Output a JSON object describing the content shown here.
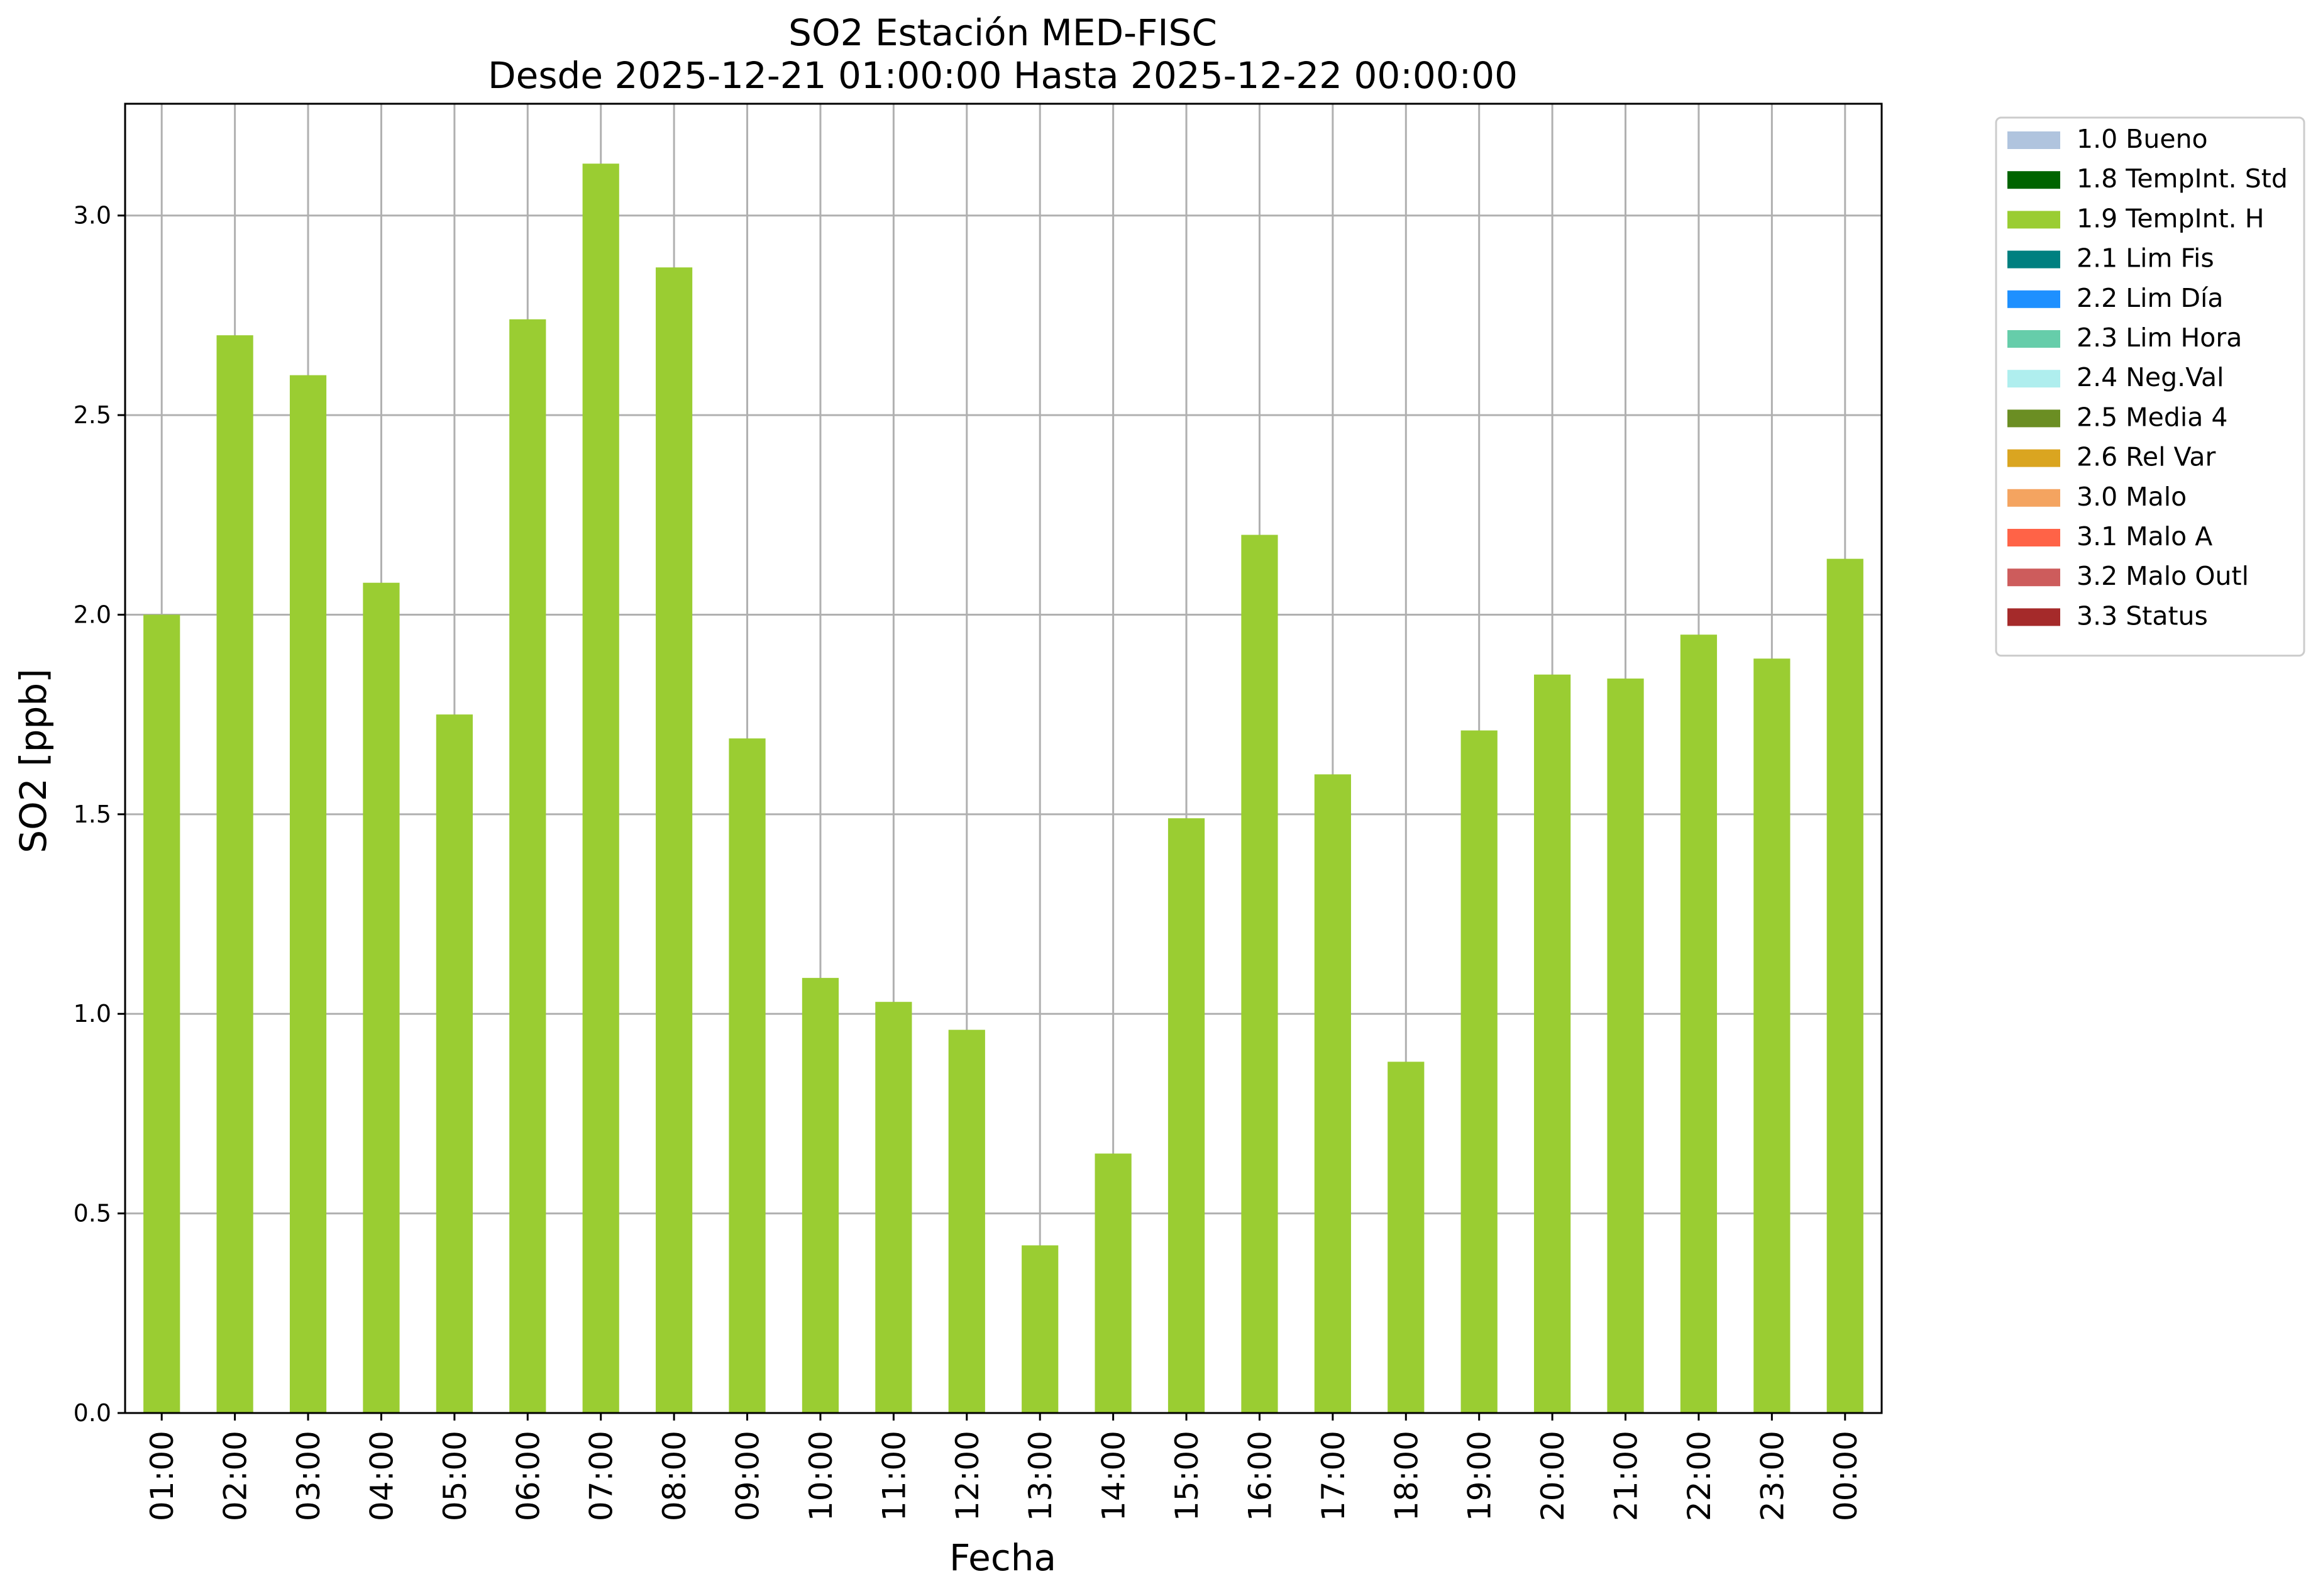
{
  "chart_data": {
    "type": "bar",
    "title": "SO2 Estación MED-FISC",
    "subtitle": "Desde 2025-12-21 01:00:00 Hasta 2025-12-22 00:00:00",
    "xlabel": "Fecha",
    "ylabel": "SO2 [ppb]",
    "ylim": [
      0,
      3.28
    ],
    "yticks": [
      "0.0",
      "0.5",
      "1.0",
      "1.5",
      "2.0",
      "2.5",
      "3.0"
    ],
    "grid": true,
    "legend_position": "outside-top-right",
    "categories": [
      "01:00",
      "02:00",
      "03:00",
      "04:00",
      "05:00",
      "06:00",
      "07:00",
      "08:00",
      "09:00",
      "10:00",
      "11:00",
      "12:00",
      "13:00",
      "14:00",
      "15:00",
      "16:00",
      "17:00",
      "18:00",
      "19:00",
      "20:00",
      "21:00",
      "22:00",
      "23:00",
      "00:00"
    ],
    "series": [
      {
        "name": "1.9 TempInt. H",
        "color": "#9acd32",
        "values": [
          2.0,
          2.7,
          2.6,
          2.08,
          1.75,
          2.74,
          3.13,
          2.87,
          1.69,
          1.09,
          1.03,
          0.96,
          0.42,
          0.65,
          1.49,
          2.2,
          1.6,
          0.88,
          1.71,
          1.85,
          1.84,
          1.95,
          1.89,
          2.14
        ]
      }
    ],
    "legend": [
      {
        "label": "1.0 Bueno",
        "color": "#b0c4de"
      },
      {
        "label": "1.8 TempInt. Std",
        "color": "#006400"
      },
      {
        "label": "1.9 TempInt. H",
        "color": "#9acd32"
      },
      {
        "label": "2.1 Lim Fis",
        "color": "#008080"
      },
      {
        "label": "2.2 Lim Día",
        "color": "#1e90ff"
      },
      {
        "label": "2.3 Lim Hora",
        "color": "#66cdaa"
      },
      {
        "label": "2.4 Neg.Val",
        "color": "#afeeee"
      },
      {
        "label": "2.5 Media 4",
        "color": "#6b8e23"
      },
      {
        "label": "2.6 Rel Var",
        "color": "#daa520"
      },
      {
        "label": "3.0 Malo",
        "color": "#f4a460"
      },
      {
        "label": "3.1 Malo A",
        "color": "#ff6347"
      },
      {
        "label": "3.2 Malo Outl",
        "color": "#cd5c5c"
      },
      {
        "label": "3.3 Status",
        "color": "#a52a2a"
      }
    ]
  }
}
